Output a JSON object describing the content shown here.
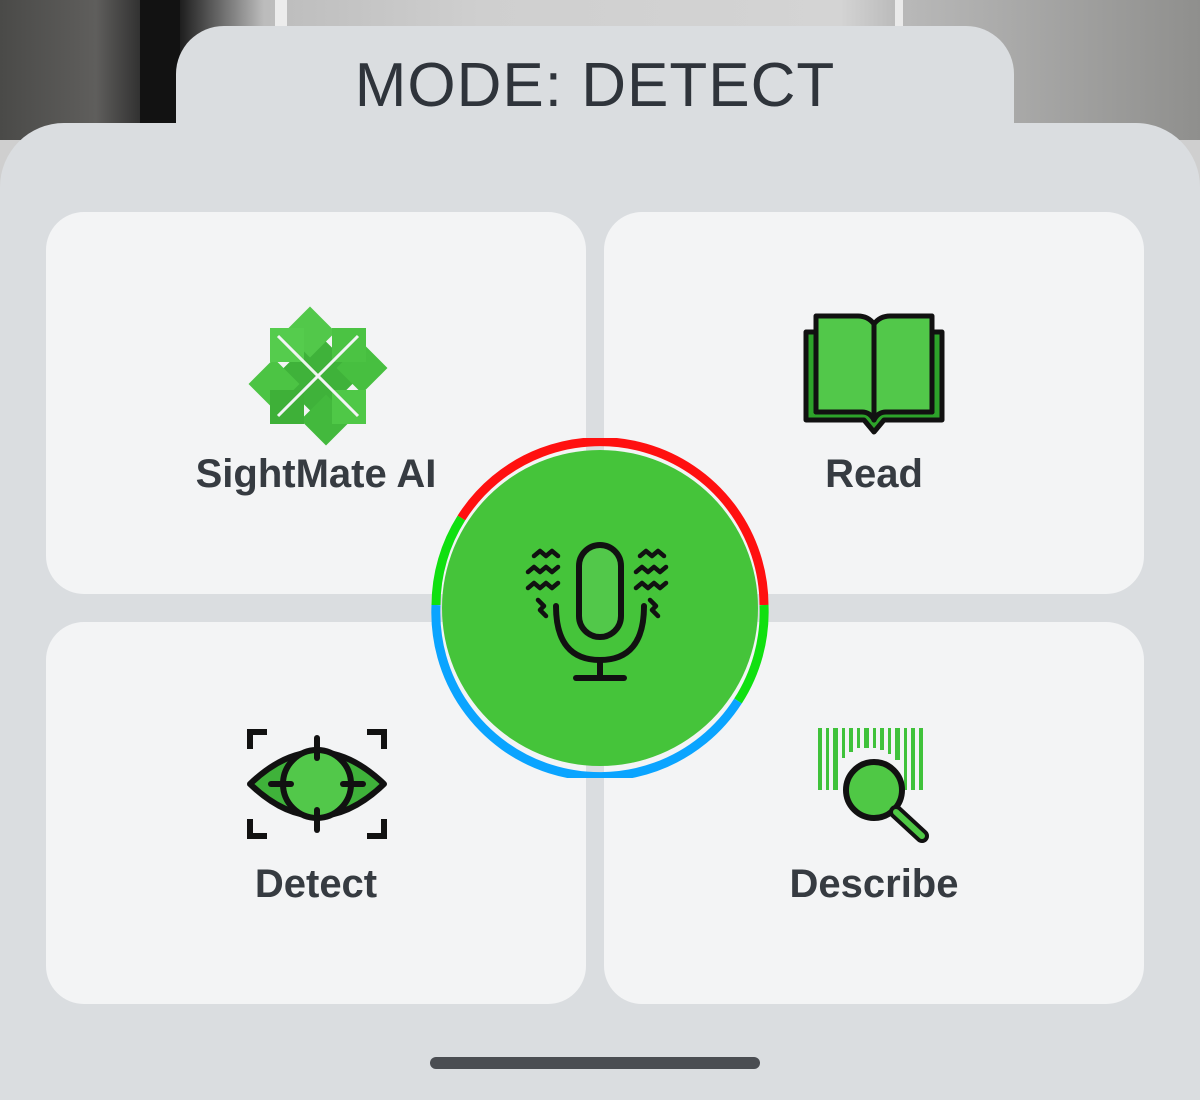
{
  "header": {
    "mode_title": "MODE: DETECT"
  },
  "cards": [
    {
      "label": "SightMate AI",
      "icon": "sightmate-logo-icon"
    },
    {
      "label": "Read",
      "icon": "book-icon"
    },
    {
      "label": "Detect",
      "icon": "eye-target-icon"
    },
    {
      "label": "Describe",
      "icon": "barcode-search-icon"
    }
  ],
  "center_button": {
    "icon": "microphone-icon",
    "ring_colors": [
      "#ff0000",
      "#00e000",
      "#00a8ff"
    ]
  },
  "colors": {
    "accent_green": "#45c43a",
    "icon_green": "#4fc845",
    "text_dark": "#363b41",
    "card_bg": "#f3f4f5",
    "sheet_bg": "#dadde0"
  }
}
